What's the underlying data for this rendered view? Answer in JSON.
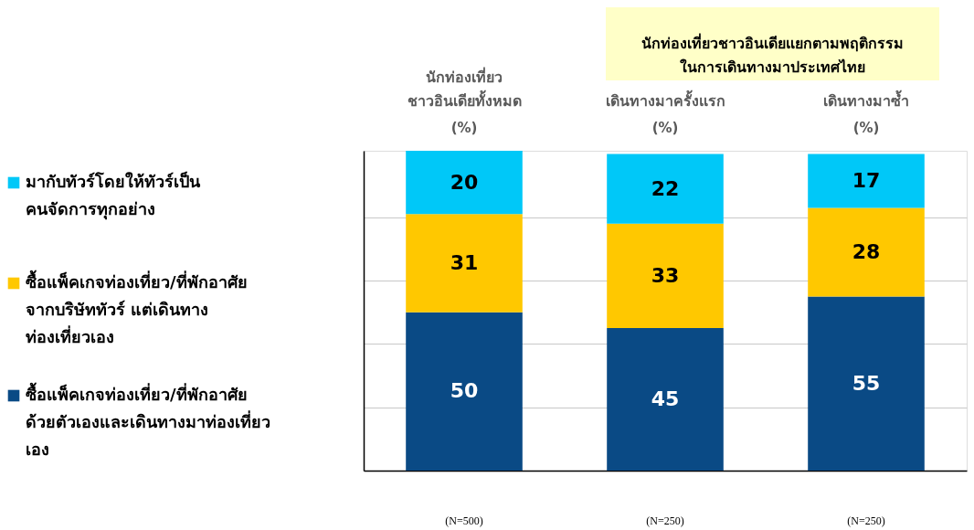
{
  "chart_data": {
    "type": "bar",
    "stacked": true,
    "categories": [
      "นักท่องเที่ยว\nชาวอินเดียทั้งหมด",
      "เดินทางมาครั้งแรก",
      "เดินทางมาซ้ำ"
    ],
    "ylabel": "(%)",
    "series": [
      {
        "name": "ซื้อแพ็คเกจท่องเที่ยว/ที่พักอาศัย\nด้วยตัวเองและเดินทางมาท่องเที่ยว\nเอง",
        "color": "#0a4a85",
        "values": [
          50,
          45,
          55
        ]
      },
      {
        "name": "ซื้อแพ็คเกจท่องเที่ยว/ที่พักอาศัย\nจากบริษัททัวร์ แต่เดินทาง\nท่องเที่ยวเอง",
        "color": "#ffc800",
        "values": [
          31,
          33,
          28
        ]
      },
      {
        "name": "มากับทัวร์โดยให้ทัวร์เป็น\nคนจัดการทุกอย่าง",
        "color": "#00c8f8",
        "values": [
          20,
          22,
          17
        ]
      }
    ],
    "ylim": [
      0,
      101
    ],
    "yticks": [
      {
        "value": 20,
        "label": null
      },
      {
        "value": 40,
        "label": null
      },
      {
        "value": 60,
        "label": null
      },
      {
        "value": 80,
        "label": null
      }
    ],
    "grid": "y",
    "tick_labels": "x",
    "data_labels": true,
    "legend": "left",
    "annotations": [
      "นักท่องเที่ยวชาวอินเดียแยกตามพฤติกรรม\nในการเดินทางมาประเทศไทย",
      "(N=500)",
      "(N=250)",
      "(N=250)"
    ]
  }
}
